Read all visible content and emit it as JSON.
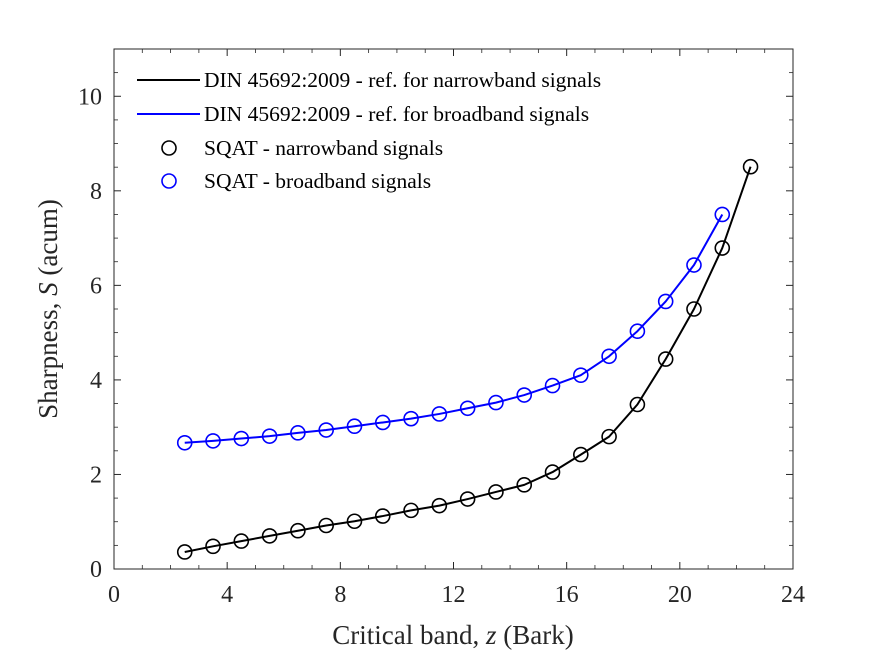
{
  "chart_data": {
    "type": "line",
    "xlabel_parts": [
      "Critical band, ",
      "z",
      " (Bark)"
    ],
    "ylabel_parts": [
      "Sharpness, ",
      "S",
      " (acum)"
    ],
    "xlim": [
      0,
      24
    ],
    "ylim": [
      0,
      11
    ],
    "xticks": [
      0,
      4,
      8,
      12,
      16,
      20,
      24
    ],
    "yticks": [
      0,
      2,
      4,
      6,
      8,
      10
    ],
    "grid": false,
    "legend_position": "top-left",
    "colors": {
      "black": "#000000",
      "blue": "#0000ff"
    },
    "series": [
      {
        "name": "DIN 45692:2009 - ref. for narrowband signals",
        "style": "line",
        "color": "#000000",
        "x": [
          2.5,
          3.5,
          4.5,
          5.5,
          6.5,
          7.5,
          8.5,
          9.5,
          10.5,
          11.5,
          12.5,
          13.5,
          14.5,
          15.5,
          16.5,
          17.5,
          18.5,
          19.5,
          20.5,
          21.5,
          22.5
        ],
        "y": [
          0.36,
          0.48,
          0.59,
          0.7,
          0.81,
          0.92,
          1.01,
          1.12,
          1.24,
          1.34,
          1.48,
          1.63,
          1.78,
          2.05,
          2.42,
          2.8,
          3.48,
          4.44,
          5.5,
          6.79,
          8.51
        ]
      },
      {
        "name": "DIN 45692:2009 - ref. for broadband signals",
        "style": "line",
        "color": "#0000ff",
        "x": [
          2.5,
          3.5,
          4.5,
          5.5,
          6.5,
          7.5,
          8.5,
          9.5,
          10.5,
          11.5,
          12.5,
          13.5,
          14.5,
          15.5,
          16.5,
          17.5,
          18.5,
          19.5,
          20.5,
          21.5
        ],
        "y": [
          2.67,
          2.71,
          2.76,
          2.81,
          2.88,
          2.94,
          3.02,
          3.1,
          3.18,
          3.28,
          3.4,
          3.52,
          3.68,
          3.88,
          4.1,
          4.5,
          5.03,
          5.66,
          6.43,
          7.5
        ]
      },
      {
        "name": "SQAT - narrowband signals",
        "style": "markers",
        "color": "#000000",
        "x": [
          2.5,
          3.5,
          4.5,
          5.5,
          6.5,
          7.5,
          8.5,
          9.5,
          10.5,
          11.5,
          12.5,
          13.5,
          14.5,
          15.5,
          16.5,
          17.5,
          18.5,
          19.5,
          20.5,
          21.5,
          22.5
        ],
        "y": [
          0.36,
          0.48,
          0.59,
          0.7,
          0.81,
          0.92,
          1.01,
          1.12,
          1.24,
          1.34,
          1.48,
          1.63,
          1.78,
          2.05,
          2.42,
          2.8,
          3.48,
          4.44,
          5.5,
          6.79,
          8.51
        ]
      },
      {
        "name": "SQAT - broadband signals",
        "style": "markers",
        "color": "#0000ff",
        "x": [
          2.5,
          3.5,
          4.5,
          5.5,
          6.5,
          7.5,
          8.5,
          9.5,
          10.5,
          11.5,
          12.5,
          13.5,
          14.5,
          15.5,
          16.5,
          17.5,
          18.5,
          19.5,
          20.5,
          21.5
        ],
        "y": [
          2.67,
          2.71,
          2.76,
          2.81,
          2.88,
          2.94,
          3.02,
          3.1,
          3.18,
          3.28,
          3.4,
          3.52,
          3.68,
          3.88,
          4.1,
          4.5,
          5.03,
          5.66,
          6.43,
          7.5
        ]
      }
    ]
  }
}
